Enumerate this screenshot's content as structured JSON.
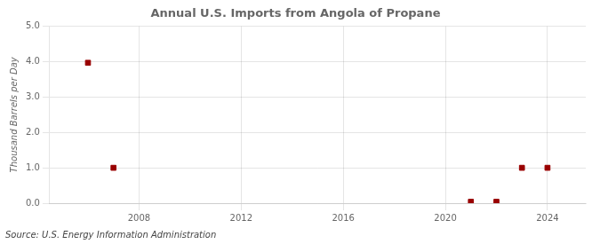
{
  "chart_data": {
    "type": "scatter",
    "title": "Annual U.S. Imports from Angola of Propane",
    "ylabel": "Thousand Barrels per Day",
    "annotations": [
      "Source: U.S. Energy Information Administration"
    ],
    "x": [
      2006,
      2007,
      2021,
      2022,
      2023,
      2024
    ],
    "values": [
      3.968,
      1.0,
      0.04,
      0.04,
      1.0,
      1.0
    ],
    "color": "#990000",
    "marker": "square",
    "xlim": [
      2004.5,
      2025.5
    ],
    "xticks": [
      2008,
      2012,
      2016,
      2020,
      2024
    ],
    "ylim": [
      0.0,
      5.0
    ],
    "yticks": [
      {
        "value": 0.0,
        "label": "0.0"
      },
      {
        "value": 1.0,
        "label": "1.0"
      },
      {
        "value": 2.0,
        "label": "2.0"
      },
      {
        "value": 3.0,
        "label": "3.0"
      },
      {
        "value": 4.0,
        "label": "4.0"
      },
      {
        "value": 5.0,
        "label": "5.0"
      }
    ],
    "grid": true
  }
}
